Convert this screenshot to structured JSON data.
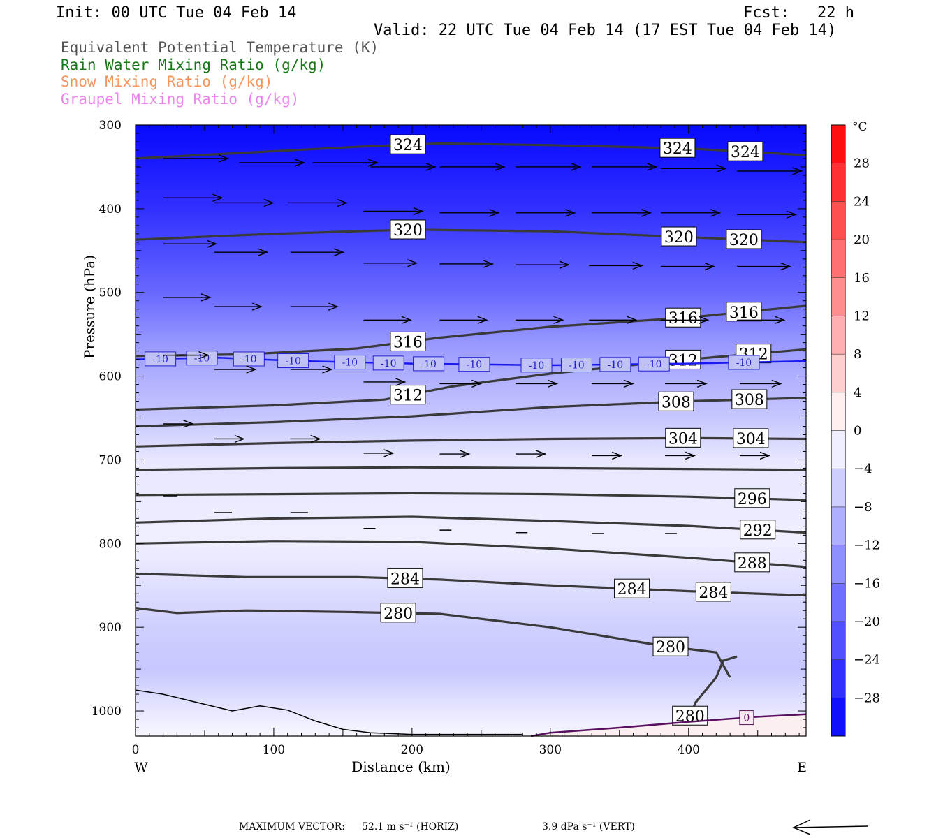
{
  "header": {
    "init": "Init: 00 UTC Tue 04 Feb 14",
    "fcst": "Fcst:   22 h",
    "valid": "Valid: 22 UTC Tue 04 Feb 14 (17 EST Tue 04 Feb 14)"
  },
  "legend": [
    {
      "label": "Equivalent Potential Temperature (K)",
      "color": "#555555"
    },
    {
      "label": "Rain Water Mixing Ratio (g/kg)",
      "color": "#157815"
    },
    {
      "label": "Snow Mixing Ratio (g/kg)",
      "color": "#f5935a"
    },
    {
      "label": "Graupel Mixing Ratio (g/kg)",
      "color": "#ee82ee"
    }
  ],
  "footer": {
    "max_vector_label": "MAXIMUM VECTOR:",
    "horiz": "52.1 m s⁻¹ (HORIZ)",
    "vert": "3.9 dPa s⁻¹ (VERT)"
  },
  "chart_data": {
    "type": "cross-section",
    "xlabel": "Distance (km)",
    "ylabel": "Pressure (hPa)",
    "xlim": [
      0,
      485
    ],
    "ylim": [
      1030,
      300
    ],
    "x_ticks": [
      0,
      100,
      200,
      300,
      400
    ],
    "y_ticks": [
      300,
      400,
      500,
      600,
      700,
      800,
      900,
      1000
    ],
    "x_end_labels": {
      "left": "W",
      "right": "E"
    },
    "colorbar": {
      "unit": "°C",
      "ticks": [
        28,
        24,
        20,
        16,
        12,
        8,
        4,
        0,
        -4,
        -8,
        -12,
        -16,
        -20,
        -24,
        -28
      ],
      "range": [
        -32,
        32
      ]
    },
    "temperature_fill": [
      {
        "p": 300,
        "t": -31
      },
      {
        "p": 400,
        "t": -26
      },
      {
        "p": 500,
        "t": -19
      },
      {
        "p": 560,
        "t": -13
      },
      {
        "p": 600,
        "t": -10
      },
      {
        "p": 650,
        "t": -7
      },
      {
        "p": 700,
        "t": -3
      },
      {
        "p": 800,
        "t": -2
      },
      {
        "p": 900,
        "t": -6
      },
      {
        "p": 950,
        "t": -7
      },
      {
        "p": 1000,
        "t": -3
      },
      {
        "p": 1030,
        "t": -1
      }
    ],
    "isotherm": {
      "label": "-10",
      "value": -10,
      "color": "#1a1aee",
      "points": [
        [
          0,
          580
        ],
        [
          60,
          578
        ],
        [
          120,
          582
        ],
        [
          200,
          585
        ],
        [
          300,
          587
        ],
        [
          400,
          585
        ],
        [
          485,
          582
        ]
      ],
      "label_x": [
        18,
        48,
        82,
        114,
        155,
        183,
        212,
        245,
        290,
        319,
        347,
        375,
        440
      ]
    },
    "zero_isotherm": {
      "label": "0",
      "color": "#5a1060",
      "points": [
        [
          286,
          1030
        ],
        [
          300,
          1026
        ],
        [
          350,
          1020
        ],
        [
          400,
          1013
        ],
        [
          450,
          1007
        ],
        [
          485,
          1004
        ]
      ],
      "label_x": [
        442
      ]
    },
    "theta_e": [
      {
        "value": 324,
        "points": [
          [
            0,
            340
          ],
          [
            80,
            333
          ],
          [
            160,
            326
          ],
          [
            220,
            322
          ],
          [
            300,
            324
          ],
          [
            400,
            328
          ],
          [
            485,
            336
          ]
        ],
        "label_x": [
          197,
          392,
          441
        ]
      },
      {
        "value": 324,
        "points": [
          [
            0,
            323
          ],
          [
            485,
            323
          ]
        ],
        "label_x": [],
        "hidden": true
      },
      {
        "value": 320,
        "points": [
          [
            0,
            437
          ],
          [
            100,
            430
          ],
          [
            200,
            425
          ],
          [
            300,
            427
          ],
          [
            400,
            434
          ],
          [
            485,
            440
          ]
        ],
        "label_x": [
          197,
          393,
          440
        ]
      },
      {
        "value": 316,
        "points": [
          [
            0,
            576
          ],
          [
            80,
            574
          ],
          [
            160,
            567
          ],
          [
            220,
            554
          ],
          [
            300,
            541
          ],
          [
            400,
            530
          ],
          [
            485,
            516
          ]
        ],
        "label_x": [
          197,
          396,
          440
        ]
      },
      {
        "value": 312,
        "points": [
          [
            0,
            640
          ],
          [
            100,
            635
          ],
          [
            180,
            628
          ],
          [
            230,
            612
          ],
          [
            300,
            597
          ],
          [
            400,
            580
          ],
          [
            485,
            568
          ]
        ],
        "label_x": [
          197,
          396,
          447
        ]
      },
      {
        "value": 308,
        "points": [
          [
            0,
            660
          ],
          [
            100,
            655
          ],
          [
            200,
            648
          ],
          [
            300,
            637
          ],
          [
            400,
            630
          ],
          [
            485,
            626
          ]
        ],
        "label_x": [
          391,
          444
        ]
      },
      {
        "value": 304,
        "points": [
          [
            0,
            684
          ],
          [
            100,
            680
          ],
          [
            200,
            677
          ],
          [
            300,
            675
          ],
          [
            400,
            674
          ],
          [
            485,
            675
          ]
        ],
        "label_x": [
          396,
          445
        ]
      },
      {
        "value": 300,
        "points": [
          [
            0,
            712
          ],
          [
            100,
            710
          ],
          [
            200,
            709
          ],
          [
            300,
            710
          ],
          [
            400,
            711
          ],
          [
            485,
            712
          ]
        ],
        "label_x": []
      },
      {
        "value": 296,
        "points": [
          [
            0,
            742
          ],
          [
            100,
            741
          ],
          [
            200,
            740
          ],
          [
            300,
            741
          ],
          [
            400,
            744
          ],
          [
            485,
            748
          ]
        ],
        "label_x": [
          446
        ]
      },
      {
        "value": 292,
        "points": [
          [
            0,
            775
          ],
          [
            100,
            770
          ],
          [
            200,
            768
          ],
          [
            300,
            773
          ],
          [
            400,
            779
          ],
          [
            485,
            787
          ]
        ],
        "label_x": [
          450
        ]
      },
      {
        "value": 288,
        "points": [
          [
            0,
            800
          ],
          [
            100,
            797
          ],
          [
            200,
            798
          ],
          [
            300,
            806
          ],
          [
            400,
            817
          ],
          [
            485,
            828
          ]
        ],
        "label_x": [
          446
        ]
      },
      {
        "value": 284,
        "points": [
          [
            0,
            836
          ],
          [
            80,
            840
          ],
          [
            160,
            840
          ],
          [
            220,
            843
          ],
          [
            300,
            850
          ],
          [
            400,
            857
          ],
          [
            485,
            862
          ]
        ],
        "label_x": [
          195,
          359,
          418
        ]
      },
      {
        "value": 280,
        "points": [
          [
            0,
            877
          ],
          [
            30,
            883
          ],
          [
            80,
            880
          ],
          [
            160,
            882
          ],
          [
            220,
            884
          ],
          [
            300,
            900
          ],
          [
            380,
            922
          ],
          [
            420,
            930
          ],
          [
            430,
            960
          ]
        ],
        "label_x": [
          190,
          387
        ]
      },
      {
        "value": 280,
        "points": [
          [
            400,
            1010
          ],
          [
            405,
            990
          ],
          [
            420,
            960
          ],
          [
            425,
            940
          ],
          [
            435,
            935
          ]
        ],
        "label_x": [
          401
        ]
      }
    ],
    "wind_vectors": [
      {
        "p": 340,
        "x": 20,
        "len": 55
      },
      {
        "p": 345,
        "x": 75,
        "len": 55
      },
      {
        "p": 345,
        "x": 128,
        "len": 55
      },
      {
        "p": 350,
        "x": 170,
        "len": 55
      },
      {
        "p": 350,
        "x": 220,
        "len": 55
      },
      {
        "p": 350,
        "x": 275,
        "len": 55
      },
      {
        "p": 350,
        "x": 330,
        "len": 55
      },
      {
        "p": 352,
        "x": 380,
        "len": 55
      },
      {
        "p": 355,
        "x": 435,
        "len": 55
      },
      {
        "p": 387,
        "x": 20,
        "len": 50
      },
      {
        "p": 393,
        "x": 57,
        "len": 50
      },
      {
        "p": 393,
        "x": 110,
        "len": 50
      },
      {
        "p": 403,
        "x": 165,
        "len": 50
      },
      {
        "p": 405,
        "x": 220,
        "len": 50
      },
      {
        "p": 405,
        "x": 275,
        "len": 50
      },
      {
        "p": 405,
        "x": 330,
        "len": 50
      },
      {
        "p": 405,
        "x": 380,
        "len": 50
      },
      {
        "p": 407,
        "x": 435,
        "len": 50
      },
      {
        "p": 442,
        "x": 20,
        "len": 45
      },
      {
        "p": 452,
        "x": 57,
        "len": 45
      },
      {
        "p": 452,
        "x": 112,
        "len": 45
      },
      {
        "p": 465,
        "x": 165,
        "len": 45
      },
      {
        "p": 466,
        "x": 220,
        "len": 45
      },
      {
        "p": 467,
        "x": 275,
        "len": 45
      },
      {
        "p": 468,
        "x": 328,
        "len": 45
      },
      {
        "p": 469,
        "x": 380,
        "len": 45
      },
      {
        "p": 469,
        "x": 435,
        "len": 45
      },
      {
        "p": 506,
        "x": 20,
        "len": 40
      },
      {
        "p": 517,
        "x": 57,
        "len": 40
      },
      {
        "p": 517,
        "x": 112,
        "len": 40
      },
      {
        "p": 533,
        "x": 165,
        "len": 40
      },
      {
        "p": 533,
        "x": 220,
        "len": 40
      },
      {
        "p": 533,
        "x": 275,
        "len": 40
      },
      {
        "p": 533,
        "x": 328,
        "len": 40
      },
      {
        "p": 533,
        "x": 380,
        "len": 40
      },
      {
        "p": 533,
        "x": 435,
        "len": 40
      },
      {
        "p": 575,
        "x": 20,
        "len": 38
      },
      {
        "p": 592,
        "x": 57,
        "len": 35
      },
      {
        "p": 592,
        "x": 112,
        "len": 35
      },
      {
        "p": 607,
        "x": 165,
        "len": 35
      },
      {
        "p": 609,
        "x": 220,
        "len": 35
      },
      {
        "p": 609,
        "x": 275,
        "len": 35
      },
      {
        "p": 609,
        "x": 330,
        "len": 35
      },
      {
        "p": 609,
        "x": 383,
        "len": 35
      },
      {
        "p": 609,
        "x": 437,
        "len": 35
      },
      {
        "p": 657,
        "x": 20,
        "len": 25
      },
      {
        "p": 675,
        "x": 57,
        "len": 25
      },
      {
        "p": 675,
        "x": 112,
        "len": 25
      },
      {
        "p": 692,
        "x": 165,
        "len": 25
      },
      {
        "p": 693,
        "x": 220,
        "len": 25
      },
      {
        "p": 693,
        "x": 275,
        "len": 25
      },
      {
        "p": 695,
        "x": 330,
        "len": 25
      },
      {
        "p": 695,
        "x": 383,
        "len": 25
      },
      {
        "p": 695,
        "x": 437,
        "len": 25
      },
      {
        "p": 743,
        "x": 20,
        "len": 12
      },
      {
        "p": 763,
        "x": 57,
        "len": 15
      },
      {
        "p": 763,
        "x": 112,
        "len": 15
      },
      {
        "p": 782,
        "x": 165,
        "len": 10
      },
      {
        "p": 784,
        "x": 220,
        "len": 10
      },
      {
        "p": 787,
        "x": 275,
        "len": 10
      },
      {
        "p": 788,
        "x": 330,
        "len": 10
      },
      {
        "p": 788,
        "x": 383,
        "len": 10
      }
    ]
  }
}
